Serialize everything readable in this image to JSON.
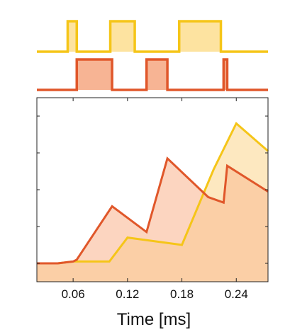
{
  "chart_data": {
    "type": "line",
    "title": "",
    "xlabel": "Time [ms]",
    "ylabel": "",
    "xlim": [
      0.02,
      0.275
    ],
    "ylim": [
      0,
      1
    ],
    "xticks": [
      0.06,
      0.12,
      0.18,
      0.24
    ],
    "xtick_labels": [
      "0.06",
      "0.12",
      "0.18",
      "0.24"
    ],
    "grid": false,
    "legend": "none",
    "pulse_trains": [
      {
        "color": "#f5c518",
        "fill": "#fde3a0",
        "pulses": [
          [
            0.054,
            0.064
          ],
          [
            0.101,
            0.128
          ],
          [
            0.177,
            0.223
          ]
        ]
      },
      {
        "color": "#e0572a",
        "fill": "#f7b494",
        "pulses": [
          [
            0.064,
            0.103
          ],
          [
            0.141,
            0.164
          ],
          [
            0.226,
            0.23
          ]
        ]
      }
    ],
    "series": [
      {
        "color": "#f5c518",
        "fill": "#fde8c0",
        "x": [
          0.02,
          0.043,
          0.06,
          0.1,
          0.12,
          0.18,
          0.215,
          0.24,
          0.275
        ],
        "y": [
          0.1,
          0.1,
          0.11,
          0.11,
          0.24,
          0.2,
          0.61,
          0.86,
          0.71
        ]
      },
      {
        "color": "#e0572a",
        "fill": "#fcd5c0",
        "x": [
          0.02,
          0.043,
          0.06,
          0.064,
          0.103,
          0.141,
          0.164,
          0.209,
          0.226,
          0.23,
          0.275
        ],
        "y": [
          0.1,
          0.1,
          0.11,
          0.12,
          0.41,
          0.27,
          0.67,
          0.46,
          0.43,
          0.63,
          0.49
        ]
      }
    ]
  }
}
